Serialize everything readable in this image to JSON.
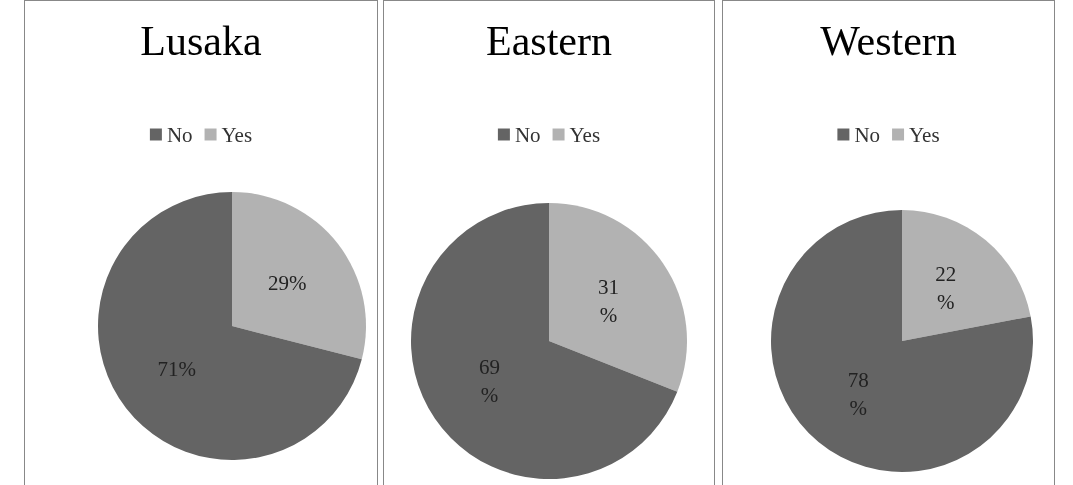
{
  "chart_data": [
    {
      "type": "pie",
      "title": "Lusaka",
      "categories": [
        "No",
        "Yes"
      ],
      "values": [
        71,
        29
      ],
      "colors": [
        "#646464",
        "#b2b2b2"
      ],
      "value_labels": [
        "71%",
        "29%"
      ],
      "legend": "top"
    },
    {
      "type": "pie",
      "title": "Eastern",
      "categories": [
        "No",
        "Yes"
      ],
      "values": [
        69,
        31
      ],
      "colors": [
        "#646464",
        "#b2b2b2"
      ],
      "value_labels": [
        "69\n%",
        "31\n%"
      ],
      "legend": "top"
    },
    {
      "type": "pie",
      "title": "Western",
      "categories": [
        "No",
        "Yes"
      ],
      "values": [
        78,
        22
      ],
      "colors": [
        "#646464",
        "#b2b2b2"
      ],
      "value_labels": [
        "78\n%",
        "22\n%"
      ],
      "legend": "top"
    }
  ]
}
